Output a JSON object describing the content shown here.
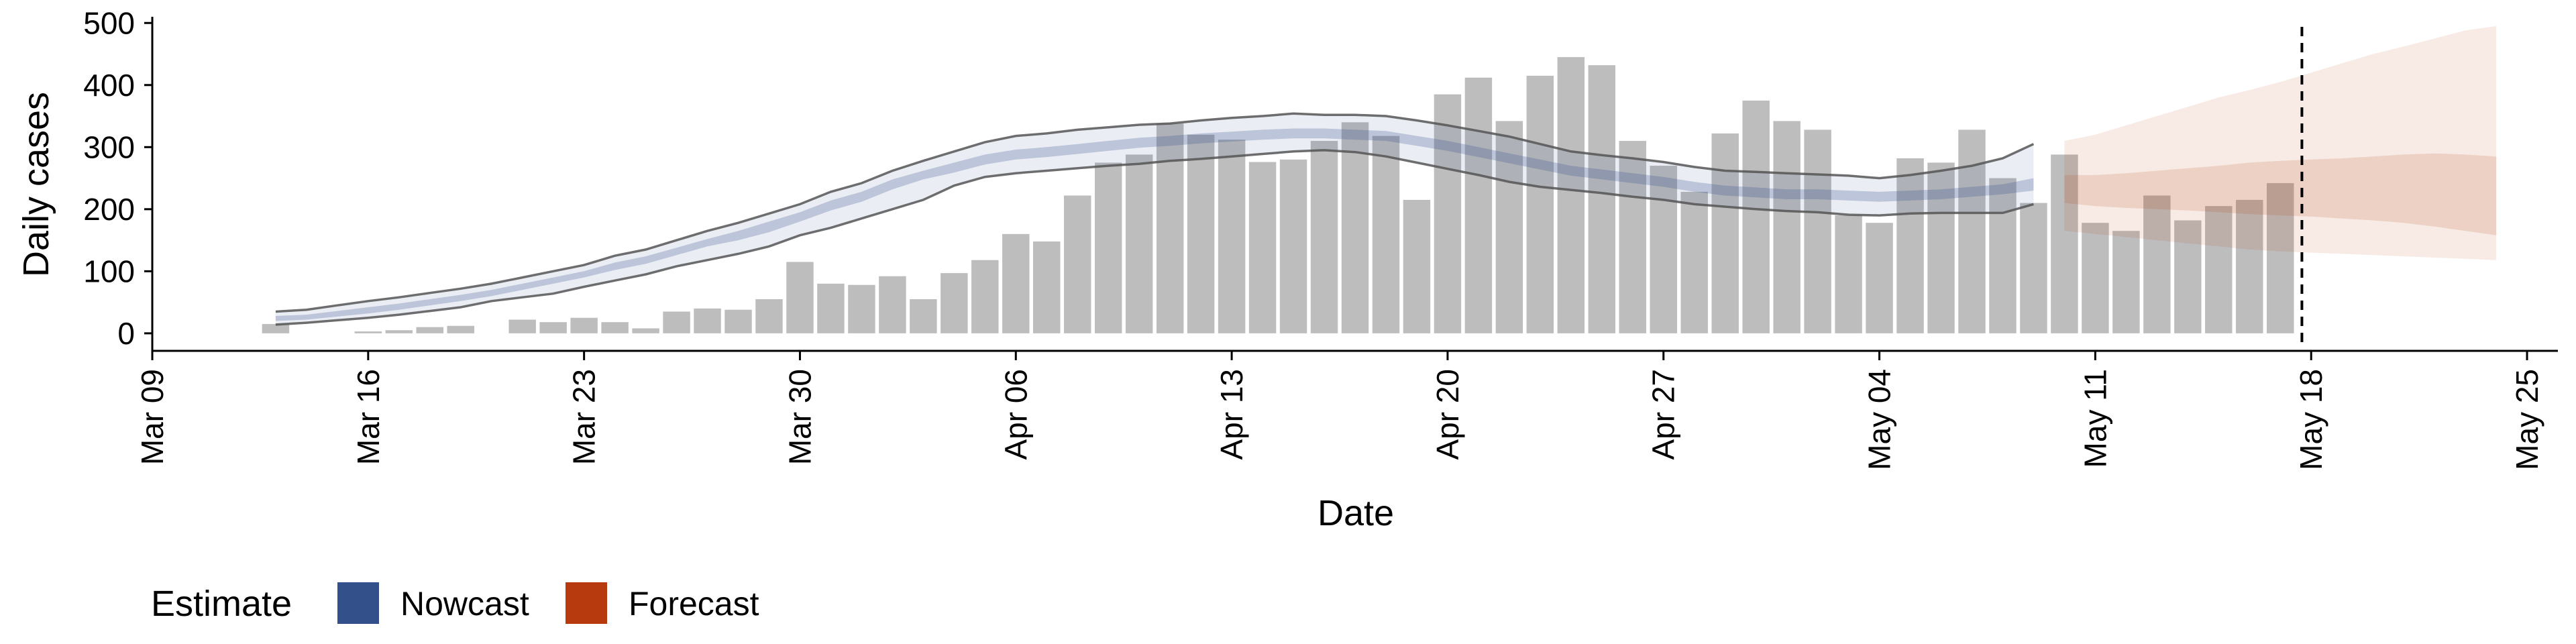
{
  "chart_data": {
    "type": "bar",
    "title": "",
    "xlabel": "Date",
    "ylabel": "Daily cases",
    "ylim": [
      -25,
      510
    ],
    "yticks": [
      0,
      100,
      200,
      300,
      400,
      500
    ],
    "start_date": "2020-03-09",
    "xlim_days": [
      0,
      78
    ],
    "xticks": [
      {
        "day": 0,
        "label": "Mar 09"
      },
      {
        "day": 7,
        "label": "Mar 16"
      },
      {
        "day": 14,
        "label": "Mar 23"
      },
      {
        "day": 21,
        "label": "Mar 30"
      },
      {
        "day": 28,
        "label": "Apr 06"
      },
      {
        "day": 35,
        "label": "Apr 13"
      },
      {
        "day": 42,
        "label": "Apr 20"
      },
      {
        "day": 49,
        "label": "Apr 27"
      },
      {
        "day": 56,
        "label": "May 04"
      },
      {
        "day": 63,
        "label": "May 11"
      },
      {
        "day": 70,
        "label": "May 18"
      },
      {
        "day": 77,
        "label": "May 25"
      }
    ],
    "cases": [
      {
        "day": 4,
        "value": 15
      },
      {
        "day": 5,
        "value": 0
      },
      {
        "day": 6,
        "value": 0
      },
      {
        "day": 7,
        "value": 3
      },
      {
        "day": 8,
        "value": 5
      },
      {
        "day": 9,
        "value": 10
      },
      {
        "day": 10,
        "value": 12
      },
      {
        "day": 11,
        "value": 0
      },
      {
        "day": 12,
        "value": 22
      },
      {
        "day": 13,
        "value": 18
      },
      {
        "day": 14,
        "value": 25
      },
      {
        "day": 15,
        "value": 18
      },
      {
        "day": 16,
        "value": 8
      },
      {
        "day": 17,
        "value": 35
      },
      {
        "day": 18,
        "value": 40
      },
      {
        "day": 19,
        "value": 38
      },
      {
        "day": 20,
        "value": 55
      },
      {
        "day": 21,
        "value": 115
      },
      {
        "day": 22,
        "value": 80
      },
      {
        "day": 23,
        "value": 78
      },
      {
        "day": 24,
        "value": 92
      },
      {
        "day": 25,
        "value": 55
      },
      {
        "day": 26,
        "value": 97
      },
      {
        "day": 27,
        "value": 118
      },
      {
        "day": 28,
        "value": 160
      },
      {
        "day": 29,
        "value": 148
      },
      {
        "day": 30,
        "value": 222
      },
      {
        "day": 31,
        "value": 275
      },
      {
        "day": 32,
        "value": 288
      },
      {
        "day": 33,
        "value": 338
      },
      {
        "day": 34,
        "value": 320
      },
      {
        "day": 35,
        "value": 312
      },
      {
        "day": 36,
        "value": 276
      },
      {
        "day": 37,
        "value": 280
      },
      {
        "day": 38,
        "value": 310
      },
      {
        "day": 39,
        "value": 340
      },
      {
        "day": 40,
        "value": 318
      },
      {
        "day": 41,
        "value": 215
      },
      {
        "day": 42,
        "value": 385
      },
      {
        "day": 43,
        "value": 412
      },
      {
        "day": 44,
        "value": 342
      },
      {
        "day": 45,
        "value": 415
      },
      {
        "day": 46,
        "value": 445
      },
      {
        "day": 47,
        "value": 432
      },
      {
        "day": 48,
        "value": 310
      },
      {
        "day": 49,
        "value": 270
      },
      {
        "day": 50,
        "value": 228
      },
      {
        "day": 51,
        "value": 322
      },
      {
        "day": 52,
        "value": 375
      },
      {
        "day": 53,
        "value": 342
      },
      {
        "day": 54,
        "value": 328
      },
      {
        "day": 55,
        "value": 190
      },
      {
        "day": 56,
        "value": 178
      },
      {
        "day": 57,
        "value": 282
      },
      {
        "day": 58,
        "value": 275
      },
      {
        "day": 59,
        "value": 328
      },
      {
        "day": 60,
        "value": 250
      },
      {
        "day": 61,
        "value": 210
      },
      {
        "day": 62,
        "value": 288
      },
      {
        "day": 63,
        "value": 178
      },
      {
        "day": 64,
        "value": 165
      },
      {
        "day": 65,
        "value": 222
      },
      {
        "day": 66,
        "value": 182
      },
      {
        "day": 67,
        "value": 205
      },
      {
        "day": 68,
        "value": 215
      },
      {
        "day": 69,
        "value": 242
      }
    ],
    "nowcast": {
      "name": "Nowcast",
      "color": "#33508a",
      "days": [
        4,
        5,
        6,
        7,
        8,
        9,
        10,
        11,
        12,
        13,
        14,
        15,
        16,
        17,
        18,
        19,
        20,
        21,
        22,
        23,
        24,
        25,
        26,
        27,
        28,
        29,
        30,
        31,
        32,
        33,
        34,
        35,
        36,
        37,
        38,
        39,
        40,
        41,
        42,
        43,
        44,
        45,
        46,
        47,
        48,
        49,
        50,
        51,
        52,
        53,
        54,
        55,
        56,
        57,
        58,
        59,
        60,
        61
      ],
      "outer_upper": [
        35,
        38,
        45,
        52,
        58,
        65,
        72,
        80,
        90,
        100,
        110,
        125,
        135,
        150,
        165,
        178,
        193,
        208,
        228,
        242,
        262,
        278,
        293,
        308,
        318,
        322,
        328,
        332,
        336,
        338,
        343,
        347,
        350,
        354,
        352,
        352,
        350,
        343,
        335,
        326,
        317,
        305,
        293,
        287,
        282,
        276,
        268,
        262,
        260,
        258,
        256,
        254,
        250,
        255,
        262,
        270,
        282,
        305
      ],
      "inner_upper": [
        28,
        30,
        36,
        42,
        48,
        55,
        62,
        70,
        80,
        90,
        100,
        114,
        124,
        138,
        152,
        165,
        180,
        195,
        214,
        228,
        248,
        262,
        275,
        288,
        296,
        300,
        305,
        310,
        315,
        318,
        322,
        325,
        328,
        330,
        330,
        328,
        326,
        318,
        310,
        300,
        290,
        280,
        270,
        264,
        258,
        252,
        244,
        238,
        235,
        232,
        232,
        230,
        228,
        230,
        232,
        236,
        240,
        250
      ],
      "median": [
        24,
        26,
        31,
        37,
        43,
        50,
        57,
        65,
        75,
        85,
        95,
        108,
        118,
        132,
        146,
        158,
        172,
        188,
        206,
        220,
        240,
        255,
        267,
        280,
        288,
        292,
        297,
        302,
        307,
        310,
        314,
        317,
        320,
        322,
        322,
        320,
        318,
        310,
        302,
        292,
        282,
        272,
        262,
        256,
        250,
        244,
        236,
        230,
        227,
        224,
        224,
        222,
        220,
        222,
        224,
        228,
        232,
        240
      ],
      "inner_lower": [
        20,
        22,
        27,
        32,
        38,
        45,
        52,
        60,
        70,
        80,
        90,
        102,
        112,
        126,
        140,
        150,
        163,
        180,
        198,
        212,
        232,
        248,
        259,
        272,
        280,
        284,
        289,
        294,
        299,
        302,
        306,
        309,
        312,
        314,
        314,
        312,
        310,
        302,
        294,
        284,
        274,
        264,
        254,
        248,
        242,
        236,
        228,
        222,
        219,
        216,
        216,
        214,
        212,
        214,
        216,
        220,
        224,
        230
      ],
      "outer_lower": [
        14,
        17,
        21,
        25,
        30,
        36,
        42,
        52,
        58,
        64,
        75,
        85,
        95,
        108,
        118,
        128,
        140,
        158,
        170,
        185,
        200,
        215,
        238,
        252,
        258,
        262,
        266,
        270,
        273,
        278,
        281,
        285,
        289,
        293,
        295,
        292,
        285,
        275,
        265,
        255,
        244,
        236,
        231,
        226,
        220,
        215,
        208,
        204,
        200,
        197,
        195,
        191,
        190,
        193,
        194,
        194,
        194,
        208
      ]
    },
    "forecast": {
      "name": "Forecast",
      "color": "#b63a0e",
      "days": [
        62,
        63,
        64,
        65,
        66,
        67,
        68,
        69,
        70,
        71,
        72,
        73,
        74,
        75,
        76
      ],
      "outer_upper": [
        310,
        320,
        335,
        350,
        365,
        380,
        392,
        405,
        420,
        435,
        450,
        462,
        475,
        488,
        495
      ],
      "outer_lower": [
        165,
        160,
        155,
        150,
        145,
        140,
        135,
        132,
        130,
        128,
        126,
        124,
        122,
        120,
        118
      ],
      "inner_upper": [
        255,
        255,
        258,
        262,
        266,
        270,
        275,
        278,
        280,
        282,
        285,
        288,
        290,
        288,
        285
      ],
      "inner_lower": [
        210,
        205,
        202,
        200,
        198,
        195,
        192,
        190,
        188,
        185,
        182,
        178,
        172,
        165,
        158
      ]
    },
    "dashed_line": {
      "day": 69.7,
      "label": ""
    },
    "legend": {
      "title": "Estimate",
      "position": "bottom-left",
      "items": [
        {
          "label": "Nowcast",
          "color": "#33508a"
        },
        {
          "label": "Forecast",
          "color": "#b63a0e"
        }
      ]
    }
  }
}
